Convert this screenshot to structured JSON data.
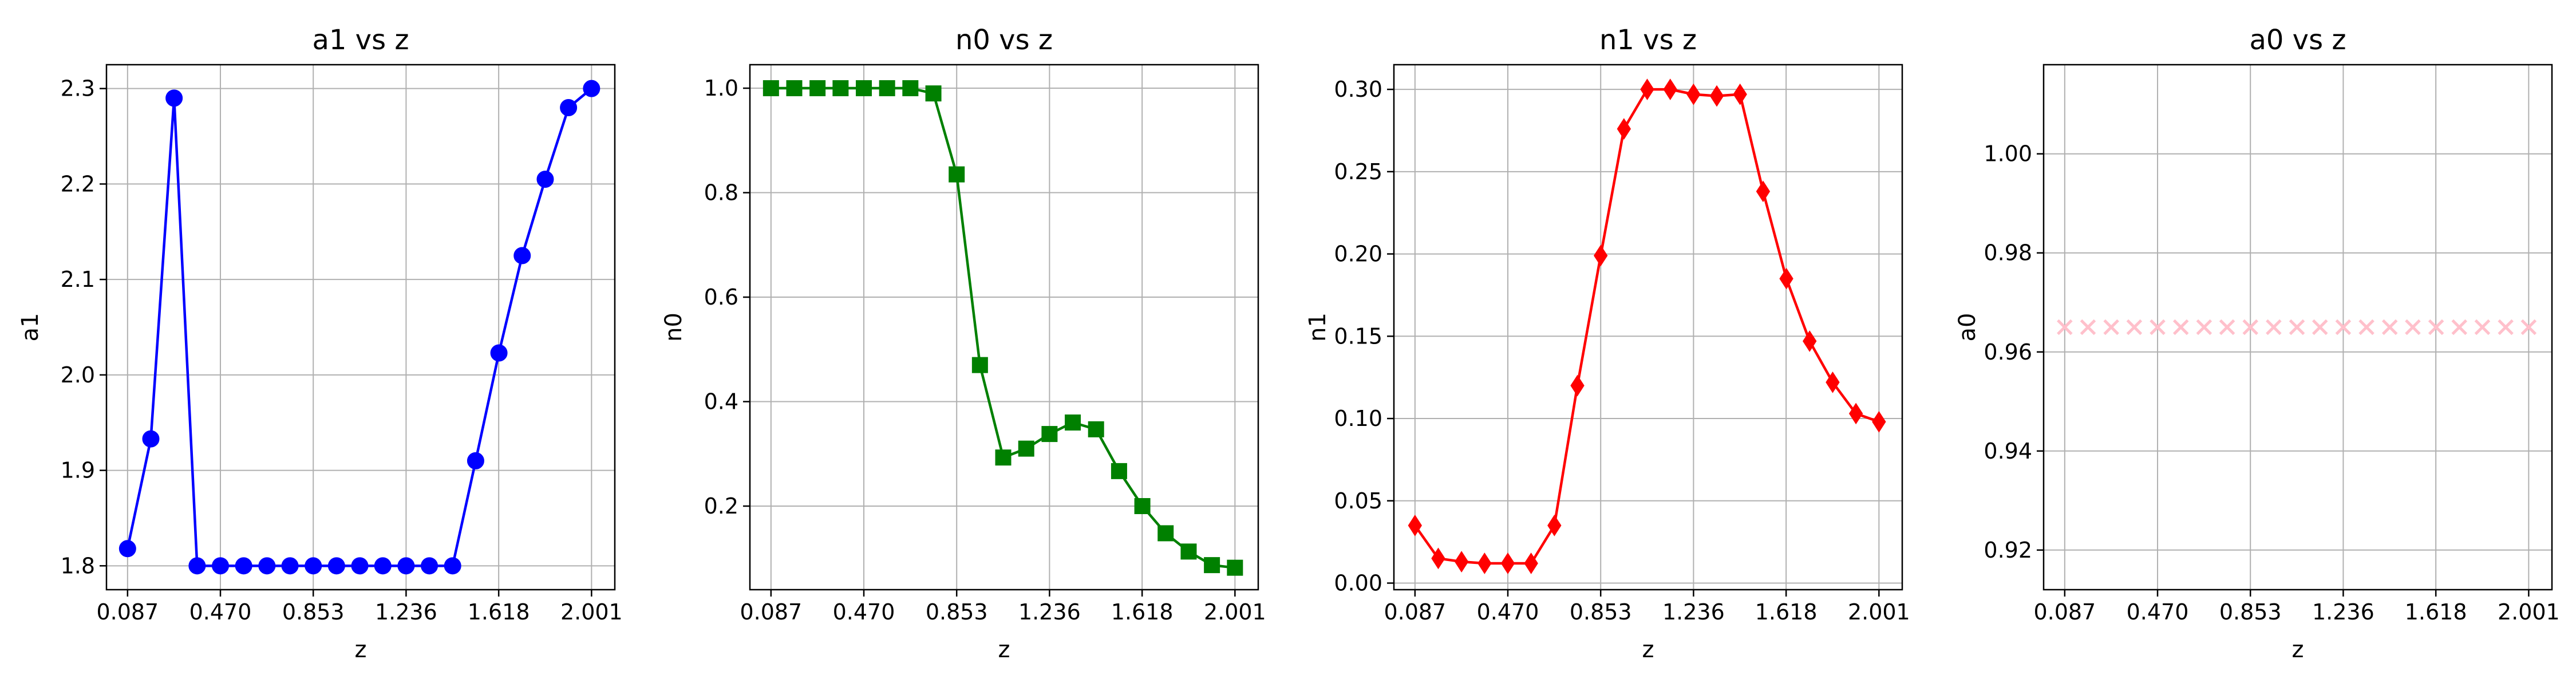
{
  "chart_data": [
    {
      "type": "line",
      "title": "a1 vs z",
      "xlabel": "z",
      "ylabel": "a1",
      "xticks": [
        "0.087",
        "0.470",
        "0.853",
        "1.236",
        "1.618",
        "2.001"
      ],
      "yticks": [
        "1.8",
        "1.9",
        "2.0",
        "2.1",
        "2.2",
        "2.3"
      ],
      "xlim": [
        0.0,
        2.097
      ],
      "ylim": [
        1.775,
        2.325
      ],
      "grid": true,
      "color": "#0000ff",
      "marker": "circle",
      "x": [
        0.087,
        0.183,
        0.279,
        0.374,
        0.47,
        0.566,
        0.662,
        0.757,
        0.853,
        0.949,
        1.045,
        1.14,
        1.236,
        1.332,
        1.428,
        1.523,
        1.619,
        1.715,
        1.81,
        1.906,
        2.001
      ],
      "y": [
        1.818,
        1.933,
        2.29,
        1.8,
        1.8,
        1.8,
        1.8,
        1.8,
        1.8,
        1.8,
        1.8,
        1.8,
        1.8,
        1.8,
        1.8,
        1.91,
        2.023,
        2.125,
        2.205,
        2.28,
        2.3
      ]
    },
    {
      "type": "line",
      "title": "n0 vs z",
      "xlabel": "z",
      "ylabel": "n0",
      "xticks": [
        "0.087",
        "0.470",
        "0.853",
        "1.236",
        "1.618",
        "2.001"
      ],
      "yticks": [
        "0.2",
        "0.4",
        "0.6",
        "0.8",
        "1.0"
      ],
      "xlim": [
        0.0,
        2.097
      ],
      "ylim": [
        0.04,
        1.045
      ],
      "grid": true,
      "color": "#008000",
      "marker": "square",
      "x": [
        0.087,
        0.183,
        0.279,
        0.374,
        0.47,
        0.566,
        0.662,
        0.757,
        0.853,
        0.949,
        1.045,
        1.14,
        1.236,
        1.332,
        1.428,
        1.523,
        1.619,
        1.715,
        1.81,
        1.906,
        2.001
      ],
      "y": [
        1.0,
        1.0,
        1.0,
        1.0,
        1.0,
        1.0,
        1.0,
        0.99,
        0.835,
        0.47,
        0.293,
        0.31,
        0.338,
        0.36,
        0.347,
        0.267,
        0.2,
        0.148,
        0.113,
        0.087,
        0.082
      ]
    },
    {
      "type": "line",
      "title": "n1 vs z",
      "xlabel": "z",
      "ylabel": "n1",
      "xticks": [
        "0.087",
        "0.470",
        "0.853",
        "1.236",
        "1.618",
        "2.001"
      ],
      "yticks": [
        "0.00",
        "0.05",
        "0.10",
        "0.15",
        "0.20",
        "0.25",
        "0.30"
      ],
      "xlim": [
        0.0,
        2.097
      ],
      "ylim": [
        -0.004,
        0.315
      ],
      "grid": true,
      "color": "#ff0000",
      "marker": "diamond",
      "x": [
        0.087,
        0.183,
        0.279,
        0.374,
        0.47,
        0.566,
        0.662,
        0.757,
        0.853,
        0.949,
        1.045,
        1.14,
        1.236,
        1.332,
        1.428,
        1.523,
        1.619,
        1.715,
        1.81,
        1.906,
        2.001
      ],
      "y": [
        0.035,
        0.015,
        0.013,
        0.012,
        0.012,
        0.012,
        0.035,
        0.12,
        0.199,
        0.276,
        0.3,
        0.3,
        0.297,
        0.296,
        0.297,
        0.238,
        0.185,
        0.147,
        0.122,
        0.103,
        0.098
      ]
    },
    {
      "type": "scatter",
      "title": "a0 vs z",
      "xlabel": "z",
      "ylabel": "a0",
      "xticks": [
        "0.087",
        "0.470",
        "0.853",
        "1.236",
        "1.618",
        "2.001"
      ],
      "yticks": [
        "0.92",
        "0.94",
        "0.96",
        "0.98",
        "1.00"
      ],
      "xlim": [
        0.0,
        2.097
      ],
      "ylim": [
        0.912,
        1.018
      ],
      "grid": true,
      "color": "#ffc0cb",
      "marker": "x",
      "x": [
        0.087,
        0.183,
        0.279,
        0.374,
        0.47,
        0.566,
        0.662,
        0.757,
        0.853,
        0.949,
        1.045,
        1.14,
        1.236,
        1.332,
        1.428,
        1.523,
        1.619,
        1.715,
        1.81,
        1.906,
        2.001
      ],
      "y": [
        0.965,
        0.965,
        0.965,
        0.965,
        0.965,
        0.965,
        0.965,
        0.965,
        0.965,
        0.965,
        0.965,
        0.965,
        0.965,
        0.965,
        0.965,
        0.965,
        0.965,
        0.965,
        0.965,
        0.965,
        0.965
      ]
    }
  ]
}
